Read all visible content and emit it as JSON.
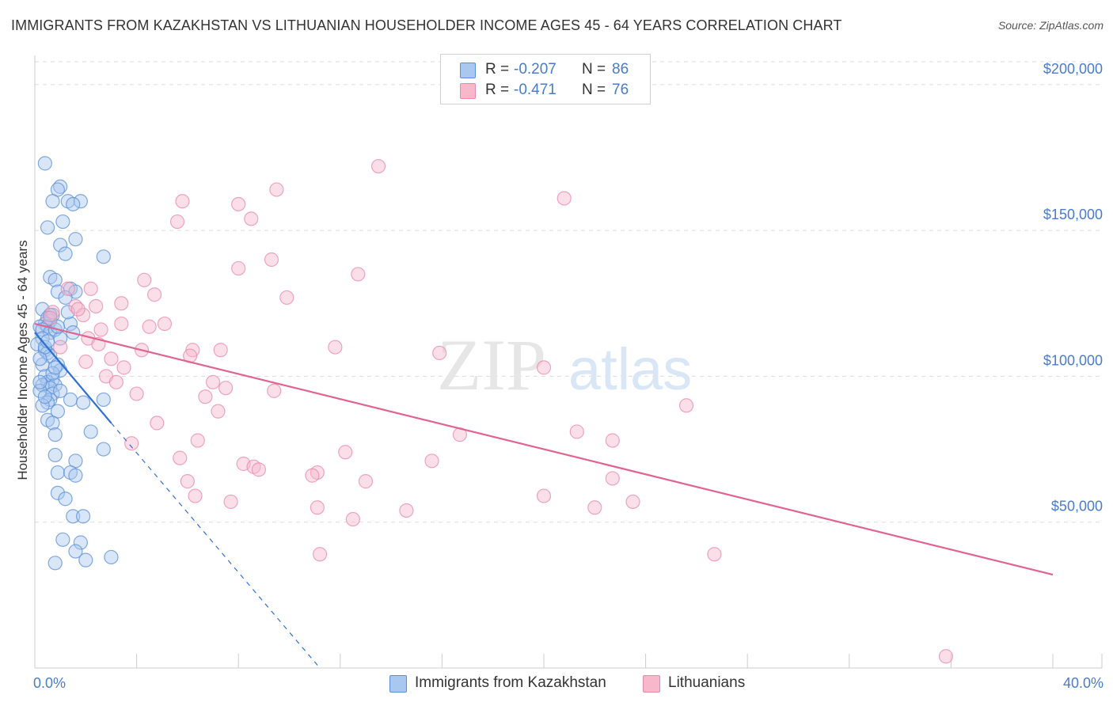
{
  "title": "IMMIGRANTS FROM KAZAKHSTAN VS LITHUANIAN HOUSEHOLDER INCOME AGES 45 - 64 YEARS CORRELATION CHART",
  "source": "Source: ZipAtlas.com",
  "watermark": {
    "zip": "ZIP",
    "atlas": "atlas"
  },
  "legend": {
    "rows": [
      {
        "r_label": "R =",
        "r_value": "-0.207",
        "n_label": "N =",
        "n_value": "86",
        "color": "#a9c8f0"
      },
      {
        "r_label": "R =",
        "r_value": "-0.471",
        "n_label": "N =",
        "n_value": "76",
        "color": "#f7b8cb"
      }
    ]
  },
  "bottom_legend": [
    {
      "label": "Immigrants from Kazakhstan",
      "color": "#a9c8f0"
    },
    {
      "label": "Lithuanians",
      "color": "#f7b8cb"
    }
  ],
  "colors": {
    "kazakhstan_fill": "#a9c8f0",
    "kazakhstan_stroke": "#5b8fd6",
    "kazakhstan_line": "#2f6fd4",
    "lithuanian_fill": "#f7b8cb",
    "lithuanian_stroke": "#e98aa8",
    "lithuanian_line": "#e0648f",
    "grid": "#dddddd",
    "axis_text": "#4a7cc7"
  },
  "chart_data": {
    "type": "scatter",
    "title": "IMMIGRANTS FROM KAZAKHSTAN VS LITHUANIAN HOUSEHOLDER INCOME AGES 45 - 64 YEARS CORRELATION CHART",
    "xlabel": "",
    "ylabel": "Householder Income Ages 45 - 64 years",
    "xlim": [
      0,
      40
    ],
    "ylim": [
      0,
      210000
    ],
    "x_ticks": [
      "0.0%",
      "40.0%"
    ],
    "y_ticks": [
      {
        "value": 50000,
        "label": "$50,000"
      },
      {
        "value": 100000,
        "label": "$100,000"
      },
      {
        "value": 150000,
        "label": "$150,000"
      },
      {
        "value": 200000,
        "label": "$200,000"
      }
    ],
    "grid": true,
    "legend_position": "top-center",
    "series": [
      {
        "name": "Immigrants from Kazakhstan",
        "R": -0.207,
        "N": 86,
        "trend": {
          "x0": 0.0,
          "y0": 115000,
          "x1": 3.0,
          "y1": 84000,
          "dash_to_x": 11.2,
          "dash_to_y": 0
        },
        "points": [
          [
            0.4,
            173000
          ],
          [
            1.0,
            165000
          ],
          [
            0.9,
            164000
          ],
          [
            0.7,
            160000
          ],
          [
            1.3,
            160000
          ],
          [
            1.8,
            160000
          ],
          [
            1.5,
            159000
          ],
          [
            0.5,
            151000
          ],
          [
            1.1,
            153000
          ],
          [
            1.6,
            147000
          ],
          [
            1.0,
            145000
          ],
          [
            1.2,
            142000
          ],
          [
            2.7,
            141000
          ],
          [
            0.6,
            134000
          ],
          [
            0.8,
            133000
          ],
          [
            0.9,
            129000
          ],
          [
            1.4,
            130000
          ],
          [
            1.6,
            129000
          ],
          [
            1.2,
            127000
          ],
          [
            0.3,
            123000
          ],
          [
            0.7,
            121000
          ],
          [
            0.5,
            120000
          ],
          [
            0.6,
            119000
          ],
          [
            0.4,
            118000
          ],
          [
            0.2,
            117000
          ],
          [
            0.5,
            117000
          ],
          [
            0.3,
            116000
          ],
          [
            0.6,
            115000
          ],
          [
            0.8,
            116000
          ],
          [
            1.4,
            118000
          ],
          [
            1.5,
            115000
          ],
          [
            0.3,
            113000
          ],
          [
            1.0,
            113000
          ],
          [
            0.1,
            111000
          ],
          [
            0.4,
            109000
          ],
          [
            0.5,
            108000
          ],
          [
            0.6,
            107000
          ],
          [
            0.9,
            104000
          ],
          [
            0.3,
            104000
          ],
          [
            1.0,
            102000
          ],
          [
            0.4,
            100000
          ],
          [
            0.7,
            99000
          ],
          [
            0.5,
            98000
          ],
          [
            0.8,
            97000
          ],
          [
            0.3,
            97000
          ],
          [
            0.6,
            96000
          ],
          [
            0.2,
            95000
          ],
          [
            0.7,
            94000
          ],
          [
            0.6,
            92000
          ],
          [
            1.4,
            92000
          ],
          [
            0.5,
            91000
          ],
          [
            1.9,
            91000
          ],
          [
            2.7,
            92000
          ],
          [
            0.3,
            90000
          ],
          [
            0.9,
            88000
          ],
          [
            0.5,
            85000
          ],
          [
            0.7,
            84000
          ],
          [
            2.2,
            81000
          ],
          [
            0.8,
            80000
          ],
          [
            2.7,
            75000
          ],
          [
            0.8,
            73000
          ],
          [
            1.6,
            71000
          ],
          [
            0.9,
            67000
          ],
          [
            1.4,
            67000
          ],
          [
            1.6,
            66000
          ],
          [
            0.9,
            60000
          ],
          [
            1.2,
            58000
          ],
          [
            1.5,
            52000
          ],
          [
            1.9,
            52000
          ],
          [
            1.1,
            44000
          ],
          [
            1.8,
            43000
          ],
          [
            1.6,
            40000
          ],
          [
            3.0,
            38000
          ],
          [
            2.0,
            37000
          ],
          [
            0.8,
            36000
          ],
          [
            0.2,
            98000
          ],
          [
            0.6,
            121000
          ],
          [
            0.4,
            110000
          ],
          [
            1.0,
            95000
          ],
          [
            0.7,
            101000
          ],
          [
            0.2,
            106000
          ],
          [
            0.9,
            117000
          ],
          [
            1.3,
            122000
          ],
          [
            0.4,
            93000
          ],
          [
            0.8,
            103000
          ],
          [
            0.5,
            112000
          ]
        ]
      },
      {
        "name": "Lithuanians",
        "R": -0.471,
        "N": 76,
        "trend": {
          "x0": 0.0,
          "y0": 118000,
          "x1": 40.0,
          "y1": 32000
        },
        "points": [
          [
            13.5,
            172000
          ],
          [
            20.8,
            161000
          ],
          [
            9.5,
            164000
          ],
          [
            5.8,
            160000
          ],
          [
            8.0,
            159000
          ],
          [
            5.6,
            153000
          ],
          [
            8.5,
            154000
          ],
          [
            9.3,
            140000
          ],
          [
            8.0,
            137000
          ],
          [
            12.7,
            135000
          ],
          [
            4.3,
            133000
          ],
          [
            1.3,
            130000
          ],
          [
            2.2,
            130000
          ],
          [
            4.7,
            128000
          ],
          [
            9.9,
            127000
          ],
          [
            1.6,
            124000
          ],
          [
            2.4,
            124000
          ],
          [
            3.4,
            125000
          ],
          [
            0.7,
            122000
          ],
          [
            1.9,
            121000
          ],
          [
            1.7,
            123000
          ],
          [
            5.1,
            118000
          ],
          [
            3.4,
            118000
          ],
          [
            4.5,
            117000
          ],
          [
            2.6,
            116000
          ],
          [
            0.6,
            120000
          ],
          [
            2.1,
            113000
          ],
          [
            2.5,
            111000
          ],
          [
            11.8,
            110000
          ],
          [
            4.2,
            109000
          ],
          [
            6.2,
            109000
          ],
          [
            7.3,
            109000
          ],
          [
            15.9,
            108000
          ],
          [
            6.1,
            107000
          ],
          [
            3.0,
            106000
          ],
          [
            20.0,
            103000
          ],
          [
            3.5,
            103000
          ],
          [
            2.8,
            100000
          ],
          [
            3.2,
            98000
          ],
          [
            7.0,
            98000
          ],
          [
            7.5,
            96000
          ],
          [
            9.4,
            95000
          ],
          [
            6.7,
            93000
          ],
          [
            4.0,
            94000
          ],
          [
            25.6,
            90000
          ],
          [
            7.2,
            88000
          ],
          [
            4.8,
            84000
          ],
          [
            21.3,
            81000
          ],
          [
            16.7,
            80000
          ],
          [
            6.4,
            78000
          ],
          [
            22.7,
            78000
          ],
          [
            3.8,
            77000
          ],
          [
            12.2,
            74000
          ],
          [
            5.7,
            72000
          ],
          [
            15.6,
            71000
          ],
          [
            8.2,
            70000
          ],
          [
            8.6,
            69000
          ],
          [
            8.8,
            68000
          ],
          [
            11.1,
            67000
          ],
          [
            10.9,
            66000
          ],
          [
            22.7,
            65000
          ],
          [
            6.0,
            64000
          ],
          [
            13.0,
            64000
          ],
          [
            6.3,
            59000
          ],
          [
            20.0,
            59000
          ],
          [
            7.7,
            57000
          ],
          [
            23.5,
            57000
          ],
          [
            11.1,
            55000
          ],
          [
            22.0,
            55000
          ],
          [
            14.6,
            54000
          ],
          [
            12.5,
            51000
          ],
          [
            11.2,
            39000
          ],
          [
            26.7,
            39000
          ],
          [
            35.8,
            4000
          ],
          [
            1.0,
            110000
          ],
          [
            2.0,
            105000
          ]
        ]
      }
    ]
  }
}
